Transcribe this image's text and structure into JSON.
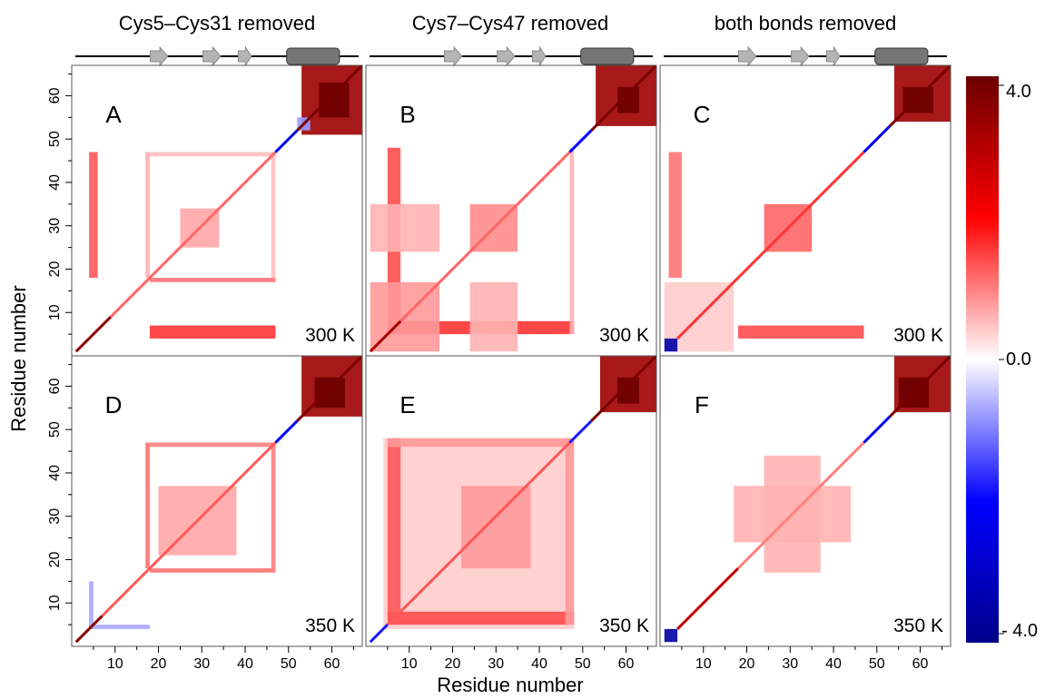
{
  "columns": [
    {
      "title": "Cys5–Cys31 removed"
    },
    {
      "title": "Cys7–Cys47 removed"
    },
    {
      "title": "both bonds removed"
    }
  ],
  "xlabel": "Residue number",
  "ylabel": "Residue number",
  "colorbar": {
    "tick_labels": [
      "4.0",
      "0.0",
      "- 4.0"
    ],
    "min": -4.0,
    "max": 4.0,
    "colors": {
      "min": "#00008b",
      "low": "#0000ff",
      "mid": "#ffffff",
      "high": "#ff0000",
      "max": "#6b0000"
    }
  },
  "secondary_structure": {
    "strands": [
      [
        18,
        22
      ],
      [
        30,
        34
      ],
      [
        38,
        41
      ]
    ],
    "helix": [
      49,
      61
    ],
    "residue_range": [
      1,
      66
    ],
    "colors": {
      "strand": "#b4b4b4",
      "helix": "#767676"
    }
  },
  "chart_data": [
    {
      "type": "heatmap",
      "panel": "A",
      "temperature": "300 K",
      "x_range": [
        0,
        67
      ],
      "y_range": [
        0,
        67
      ],
      "x_ticks": [
        10,
        20,
        30,
        40,
        50,
        60
      ],
      "y_ticks": [
        10,
        20,
        30,
        40,
        50,
        60
      ],
      "features": [
        {
          "x": [
            53,
            67
          ],
          "y": [
            51,
            67
          ],
          "value": 3.3
        },
        {
          "x": [
            57,
            64
          ],
          "y": [
            55,
            63
          ],
          "value": 4.0
        },
        {
          "x": [
            52,
            55
          ],
          "y": [
            52,
            55
          ],
          "value": -0.8
        },
        {
          "x": [
            4,
            6
          ],
          "y": [
            18,
            47
          ],
          "value": 1.3
        },
        {
          "x": [
            18,
            47
          ],
          "y": [
            4,
            7
          ],
          "value": 1.6
        },
        {
          "x": [
            18,
            47
          ],
          "y": [
            17,
            18
          ],
          "value": 1.1
        },
        {
          "x": [
            17,
            18
          ],
          "y": [
            18,
            47
          ],
          "value": 0.6
        },
        {
          "x": [
            46,
            47
          ],
          "y": [
            18,
            47
          ],
          "value": 0.5
        },
        {
          "x": [
            18,
            47
          ],
          "y": [
            46,
            47
          ],
          "value": 0.5
        },
        {
          "x": [
            25,
            34
          ],
          "y": [
            25,
            34
          ],
          "value": 0.7
        }
      ],
      "diagonal": [
        {
          "from": 1,
          "to": 9,
          "value": 3.5
        },
        {
          "from": 9,
          "to": 47,
          "value": 1.2
        },
        {
          "from": 47,
          "to": 52,
          "value": -2.5
        },
        {
          "from": 52,
          "to": 67,
          "value": 3.8
        }
      ]
    },
    {
      "type": "heatmap",
      "panel": "B",
      "temperature": "300 K",
      "x_range": [
        0,
        67
      ],
      "y_range": [
        0,
        67
      ],
      "x_ticks": [
        10,
        20,
        30,
        40,
        50,
        60
      ],
      "y_ticks": [
        10,
        20,
        30,
        40,
        50,
        60
      ],
      "features": [
        {
          "x": [
            53,
            67
          ],
          "y": [
            53,
            67
          ],
          "value": 3.3
        },
        {
          "x": [
            58,
            63
          ],
          "y": [
            56,
            62
          ],
          "value": 4.0
        },
        {
          "x": [
            5,
            8
          ],
          "y": [
            5,
            48
          ],
          "value": 1.4
        },
        {
          "x": [
            5,
            48
          ],
          "y": [
            5,
            8
          ],
          "value": 1.6
        },
        {
          "x": [
            47,
            48
          ],
          "y": [
            5,
            48
          ],
          "value": 0.6
        },
        {
          "x": [
            1,
            17
          ],
          "y": [
            1,
            17
          ],
          "value": 0.8
        },
        {
          "x": [
            1,
            17
          ],
          "y": [
            24,
            35
          ],
          "value": 0.6
        },
        {
          "x": [
            24,
            35
          ],
          "y": [
            1,
            17
          ],
          "value": 0.6
        },
        {
          "x": [
            24,
            35
          ],
          "y": [
            24,
            35
          ],
          "value": 0.9
        }
      ],
      "diagonal": [
        {
          "from": 1,
          "to": 8,
          "value": 3.2
        },
        {
          "from": 8,
          "to": 47,
          "value": 1.2
        },
        {
          "from": 47,
          "to": 52,
          "value": -2.0
        },
        {
          "from": 52,
          "to": 67,
          "value": 3.8
        }
      ]
    },
    {
      "type": "heatmap",
      "panel": "C",
      "temperature": "300 K",
      "x_range": [
        0,
        67
      ],
      "y_range": [
        0,
        67
      ],
      "x_ticks": [
        10,
        20,
        30,
        40,
        50,
        60
      ],
      "y_ticks": [
        10,
        20,
        30,
        40,
        50,
        60
      ],
      "features": [
        {
          "x": [
            54,
            67
          ],
          "y": [
            54,
            67
          ],
          "value": 3.3
        },
        {
          "x": [
            56,
            63
          ],
          "y": [
            56,
            62
          ],
          "value": 4.0
        },
        {
          "x": [
            2,
            5
          ],
          "y": [
            18,
            47
          ],
          "value": 1.1
        },
        {
          "x": [
            18,
            47
          ],
          "y": [
            4,
            7
          ],
          "value": 1.4
        },
        {
          "x": [
            24,
            35
          ],
          "y": [
            24,
            35
          ],
          "value": 1.2
        },
        {
          "x": [
            1,
            17
          ],
          "y": [
            1,
            17
          ],
          "value": 0.4
        },
        {
          "x": [
            1,
            4
          ],
          "y": [
            1,
            4
          ],
          "value": -3.5
        }
      ],
      "diagonal": [
        {
          "from": 4,
          "to": 47,
          "value": 1.6
        },
        {
          "from": 47,
          "to": 53,
          "value": -2.5
        },
        {
          "from": 53,
          "to": 67,
          "value": 3.8
        }
      ]
    },
    {
      "type": "heatmap",
      "panel": "D",
      "temperature": "350 K",
      "x_range": [
        0,
        67
      ],
      "y_range": [
        0,
        67
      ],
      "x_ticks": [
        10,
        20,
        30,
        40,
        50,
        60
      ],
      "y_ticks": [
        10,
        20,
        30,
        40,
        50,
        60
      ],
      "features": [
        {
          "x": [
            53,
            67
          ],
          "y": [
            53,
            67
          ],
          "value": 3.3
        },
        {
          "x": [
            56,
            63
          ],
          "y": [
            55,
            62
          ],
          "value": 4.0
        },
        {
          "x": [
            18,
            47
          ],
          "y": [
            17,
            18
          ],
          "value": 1.1
        },
        {
          "x": [
            17,
            18
          ],
          "y": [
            18,
            47
          ],
          "value": 1.1
        },
        {
          "x": [
            46,
            47
          ],
          "y": [
            18,
            47
          ],
          "value": 1.0
        },
        {
          "x": [
            18,
            47
          ],
          "y": [
            46,
            47
          ],
          "value": 1.0
        },
        {
          "x": [
            20,
            38
          ],
          "y": [
            21,
            37
          ],
          "value": 0.7
        },
        {
          "x": [
            4,
            18
          ],
          "y": [
            4,
            5
          ],
          "value": -0.7
        },
        {
          "x": [
            4,
            5
          ],
          "y": [
            4,
            15
          ],
          "value": -0.7
        }
      ],
      "diagonal": [
        {
          "from": 1,
          "to": 7,
          "value": 3.6
        },
        {
          "from": 7,
          "to": 47,
          "value": 1.3
        },
        {
          "from": 47,
          "to": 52,
          "value": -2.2
        },
        {
          "from": 52,
          "to": 67,
          "value": 3.8
        }
      ]
    },
    {
      "type": "heatmap",
      "panel": "E",
      "temperature": "350 K",
      "x_range": [
        0,
        67
      ],
      "y_range": [
        0,
        67
      ],
      "x_ticks": [
        10,
        20,
        30,
        40,
        50,
        60
      ],
      "y_ticks": [
        10,
        20,
        30,
        40,
        50,
        60
      ],
      "features": [
        {
          "x": [
            54,
            67
          ],
          "y": [
            54,
            67
          ],
          "value": 3.3
        },
        {
          "x": [
            58,
            63
          ],
          "y": [
            56,
            62
          ],
          "value": 4.0
        },
        {
          "x": [
            4,
            48
          ],
          "y": [
            4,
            48
          ],
          "value": 0.4
        },
        {
          "x": [
            5,
            48
          ],
          "y": [
            5,
            8
          ],
          "value": 1.4
        },
        {
          "x": [
            5,
            8
          ],
          "y": [
            5,
            48
          ],
          "value": 1.3
        },
        {
          "x": [
            46,
            48
          ],
          "y": [
            5,
            48
          ],
          "value": 0.8
        },
        {
          "x": [
            5,
            48
          ],
          "y": [
            46,
            48
          ],
          "value": 0.8
        },
        {
          "x": [
            22,
            38
          ],
          "y": [
            18,
            37
          ],
          "value": 0.8
        }
      ],
      "diagonal": [
        {
          "from": 1,
          "to": 5,
          "value": -1.8
        },
        {
          "from": 5,
          "to": 47,
          "value": 1.3
        },
        {
          "from": 47,
          "to": 52,
          "value": -1.8
        },
        {
          "from": 52,
          "to": 67,
          "value": 3.8
        }
      ]
    },
    {
      "type": "heatmap",
      "panel": "F",
      "temperature": "350 K",
      "x_range": [
        0,
        67
      ],
      "y_range": [
        0,
        67
      ],
      "x_ticks": [
        10,
        20,
        30,
        40,
        50,
        60
      ],
      "y_ticks": [
        10,
        20,
        30,
        40,
        50,
        60
      ],
      "features": [
        {
          "x": [
            54,
            67
          ],
          "y": [
            54,
            67
          ],
          "value": 3.3
        },
        {
          "x": [
            55,
            62
          ],
          "y": [
            55,
            62
          ],
          "value": 4.0
        },
        {
          "x": [
            17,
            44
          ],
          "y": [
            24,
            37
          ],
          "value": 0.6
        },
        {
          "x": [
            24,
            37
          ],
          "y": [
            17,
            44
          ],
          "value": 0.6
        },
        {
          "x": [
            1,
            4
          ],
          "y": [
            1,
            4
          ],
          "value": -3.6
        }
      ],
      "diagonal": [
        {
          "from": 4,
          "to": 18,
          "value": 2.8
        },
        {
          "from": 18,
          "to": 47,
          "value": 1.0
        },
        {
          "from": 47,
          "to": 53,
          "value": -2.2
        },
        {
          "from": 53,
          "to": 67,
          "value": 3.8
        }
      ]
    }
  ]
}
